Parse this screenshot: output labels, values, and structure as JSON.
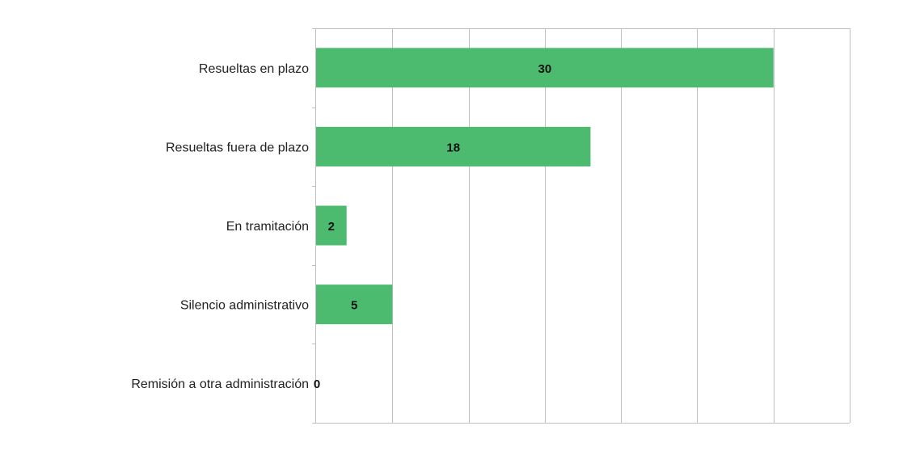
{
  "chart_data": {
    "type": "bar",
    "orientation": "horizontal",
    "categories": [
      "Resueltas en plazo",
      "Resueltas fuera de plazo",
      "En tramitación",
      "Silencio administrativo",
      "Remisión a otra administración"
    ],
    "values": [
      30,
      18,
      2,
      5,
      0
    ],
    "data_labels": [
      "30",
      "18",
      "2",
      "5",
      "0"
    ],
    "xlim": [
      0,
      35
    ],
    "x_gridlines_every": 5,
    "grid": true,
    "legend": "none",
    "title": "",
    "xlabel": "",
    "ylabel": "",
    "colors": {
      "bar": "#4cbb6f",
      "grid": "#bfbfbf",
      "axis": "#bfbfbf"
    }
  }
}
